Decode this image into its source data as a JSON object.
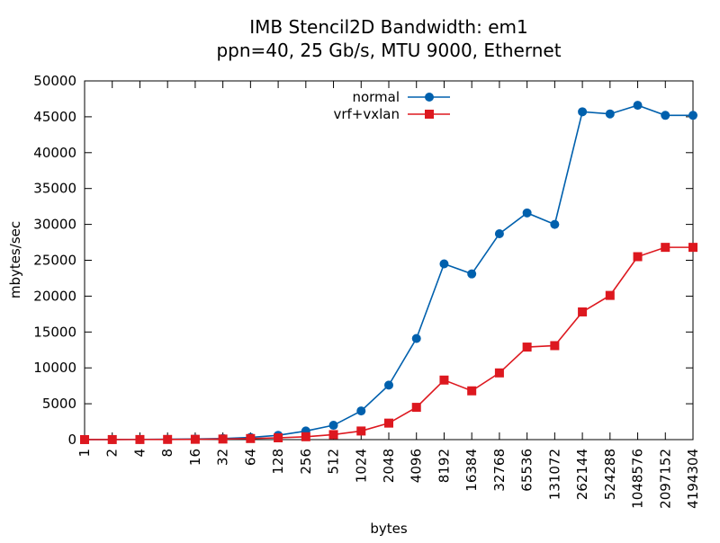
{
  "chart_data": {
    "type": "line",
    "title": "IMB Stencil2D Bandwidth: em1",
    "subtitle": "ppn=40, 25 Gb/s, MTU 9000, Ethernet",
    "xlabel": "bytes",
    "ylabel": "mbytes/sec",
    "ylim": [
      0,
      50000
    ],
    "yticks": [
      0,
      5000,
      10000,
      15000,
      20000,
      25000,
      30000,
      35000,
      40000,
      45000,
      50000
    ],
    "x_scale": "log2",
    "grid": false,
    "legend_position": "top-center",
    "categories": [
      "1",
      "2",
      "4",
      "8",
      "16",
      "32",
      "64",
      "128",
      "256",
      "512",
      "1024",
      "2048",
      "4096",
      "8192",
      "16384",
      "32768",
      "65536",
      "131072",
      "262144",
      "524288",
      "1048576",
      "2097152",
      "4194304"
    ],
    "series": [
      {
        "name": "normal",
        "color": "#0060ad",
        "marker": "circle",
        "values": [
          10,
          15,
          30,
          50,
          90,
          150,
          300,
          600,
          1200,
          2000,
          4000,
          7600,
          14100,
          24500,
          23100,
          28700,
          31600,
          30000,
          45700,
          45400,
          46600,
          45200,
          45200
        ]
      },
      {
        "name": "vrf+vxlan",
        "color": "#dd181f",
        "marker": "square",
        "values": [
          5,
          8,
          15,
          25,
          45,
          80,
          150,
          250,
          400,
          700,
          1200,
          2300,
          4500,
          8300,
          6800,
          9300,
          12900,
          13100,
          17800,
          20100,
          25500,
          26800,
          26800
        ]
      }
    ]
  }
}
